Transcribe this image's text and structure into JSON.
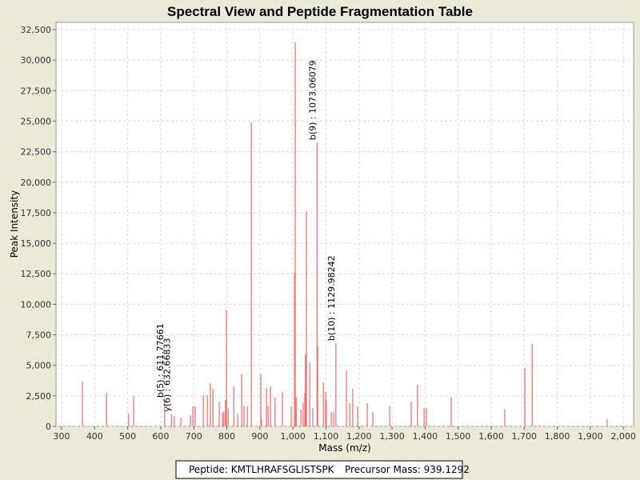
{
  "chart_data": {
    "type": "stem",
    "title": "Spectral View and Peptide Fragmentation Table",
    "x_label": "Mass (m/z)",
    "y_label": "Peak Intensity",
    "xlim": [
      283,
      2031
    ],
    "ylim": [
      0,
      33090
    ],
    "xticks": [
      300,
      400,
      500,
      600,
      700,
      800,
      900,
      {
        "value": 1000,
        "label": "1,000"
      },
      {
        "value": 1100,
        "label": "1,100"
      },
      {
        "value": 1200,
        "label": "1,200"
      },
      {
        "value": 1300,
        "label": "1,300"
      },
      {
        "value": 1400,
        "label": "1,400"
      },
      {
        "value": 1500,
        "label": "1,500"
      },
      {
        "value": 1600,
        "label": "1,600"
      },
      {
        "value": 1700,
        "label": "1,700"
      },
      {
        "value": 1800,
        "label": "1,800"
      },
      {
        "value": 1900,
        "label": "1,900"
      },
      {
        "value": 2000,
        "label": "2,000"
      }
    ],
    "yticks": [
      0,
      {
        "value": 2500,
        "label": "2,500"
      },
      {
        "value": 5000,
        "label": "5,000"
      },
      {
        "value": 7500,
        "label": "7,500"
      },
      {
        "value": 10000,
        "label": "10,000"
      },
      {
        "value": 12500,
        "label": "12,500"
      },
      {
        "value": 15000,
        "label": "15,000"
      },
      {
        "value": 17500,
        "label": "17,500"
      },
      {
        "value": 20000,
        "label": "20,000"
      },
      {
        "value": 22500,
        "label": "22,500"
      },
      {
        "value": 25000,
        "label": "25,000"
      },
      {
        "value": 27500,
        "label": "27,500"
      },
      {
        "value": 30000,
        "label": "30,000"
      },
      {
        "value": 32500,
        "label": "32,500"
      }
    ],
    "grid": true,
    "x": [
      363,
      436,
      503,
      518,
      611.77661,
      632.66833,
      641,
      661,
      690,
      697,
      704,
      729,
      741,
      750,
      758,
      777,
      787,
      791,
      796,
      799,
      804,
      821,
      833,
      845,
      852,
      862,
      874,
      903,
      905,
      920,
      925,
      932,
      946,
      968,
      995,
      1005,
      1007,
      1010,
      1024,
      1031,
      1036,
      1038,
      1041,
      1051,
      1060,
      1073.06079,
      1075,
      1092,
      1099,
      1101,
      1116,
      1123,
      1129.98242,
      1162,
      1172,
      1181,
      1196,
      1225,
      1242,
      1293,
      1358,
      1377,
      1397,
      1404,
      1479,
      1641,
      1702,
      1724,
      1951
    ],
    "series": [
      {
        "color": "#f06a6a",
        "values": [
          3670,
          2750,
          1050,
          2490,
          2160,
          1000,
          850,
          720,
          920,
          1640,
          1640,
          2550,
          2550,
          3540,
          3080,
          2030,
          1110,
          1240,
          2160,
          9560,
          1500,
          3280,
          1050,
          4260,
          1640,
          1640,
          24900,
          4260,
          590,
          3150,
          1640,
          3280,
          2360,
          2820,
          1640,
          12580,
          31440,
          2360,
          1380,
          1970,
          2750,
          5900,
          17620,
          5240,
          1500,
          23250,
          6550,
          3600,
          2820,
          2160,
          1180,
          1180,
          6810,
          4590,
          1900,
          3080,
          1640,
          1900,
          1180,
          1700,
          2030,
          3410,
          1500,
          1500,
          2360,
          1440,
          4780,
          6750,
          590
        ]
      }
    ],
    "annotations": [
      {
        "text": "b(5) : 611.77661",
        "x": 611.77661,
        "y": 2160
      },
      {
        "text": "y(6) : 632.66833",
        "x": 632.66833,
        "y": 1000
      },
      {
        "text": "b(9) : 1073.06079",
        "x": 1073.06079,
        "y": 23250
      },
      {
        "text": "b(10) : 1129.98242",
        "x": 1129.98242,
        "y": 6810
      }
    ],
    "footer": [
      "Peptide: KMTLHRAFSGLISTSPK",
      "Precursor Mass: 939.1292"
    ]
  }
}
